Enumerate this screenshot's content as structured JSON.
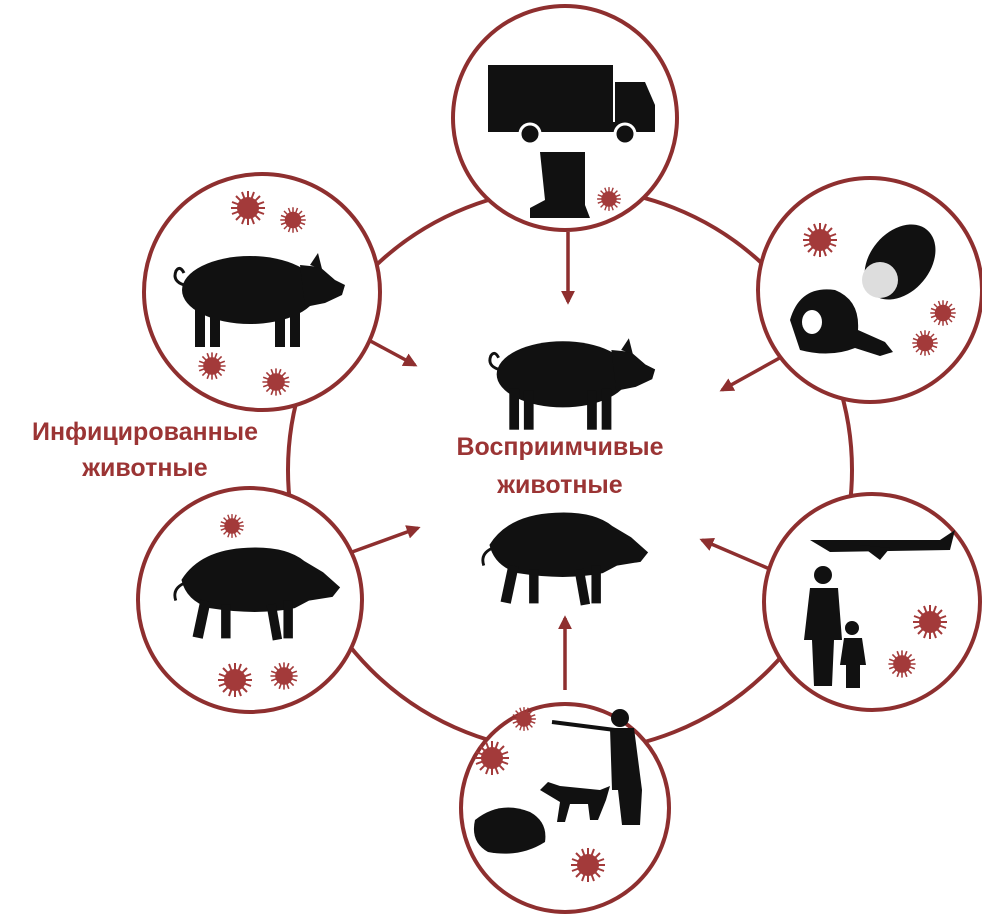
{
  "left_label": {
    "lines": [
      "Инфицированные",
      "животные"
    ]
  },
  "center_label": {
    "lines": [
      "Восприимчивые",
      "животные"
    ]
  }
}
